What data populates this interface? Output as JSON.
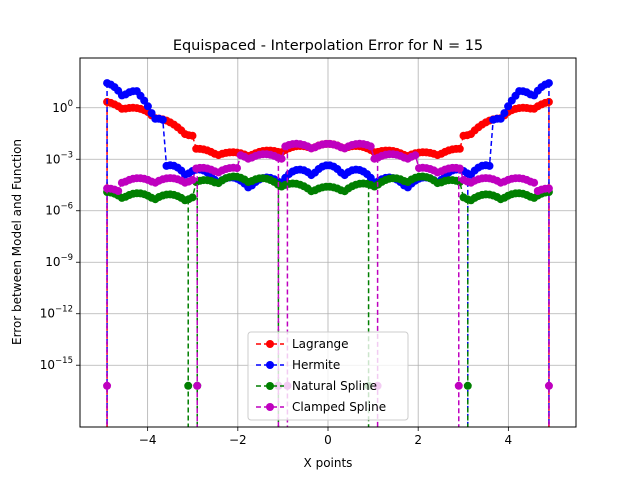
{
  "chart_data": {
    "type": "line",
    "title": "Equispaced - Interpolation Error for N = 15",
    "xlabel": "X points",
    "ylabel": "Error between Model and Function",
    "xlim": [
      -5.5,
      5.5
    ],
    "ylim_log10": [
      -18.6,
      2.9
    ],
    "yscale": "log",
    "grid": true,
    "legend_position": "lower-center",
    "x_ticks": [
      {
        "value": -4,
        "label": "−4"
      },
      {
        "value": -2,
        "label": "−2"
      },
      {
        "value": 0,
        "label": "0"
      },
      {
        "value": 2,
        "label": "2"
      },
      {
        "value": 4,
        "label": "4"
      }
    ],
    "y_ticks": [
      {
        "exp": 0,
        "label": "10",
        "sup": "0"
      },
      {
        "exp": -3,
        "label": "10",
        "sup": "−3"
      },
      {
        "exp": -6,
        "label": "10",
        "sup": "−6"
      },
      {
        "exp": -9,
        "label": "10",
        "sup": "−9"
      },
      {
        "exp": -12,
        "label": "10",
        "sup": "−12"
      },
      {
        "exp": -15,
        "label": "10",
        "sup": "−15"
      }
    ],
    "series": [
      {
        "name": "Lagrange",
        "color": "#ff0000",
        "note": "error vs x (log10 of error)"
      },
      {
        "name": "Hermite",
        "color": "#0000ff"
      },
      {
        "name": "Natural Spline",
        "color": "#007f00"
      },
      {
        "name": "Clamped Spline",
        "color": "#bf00bf"
      }
    ]
  }
}
